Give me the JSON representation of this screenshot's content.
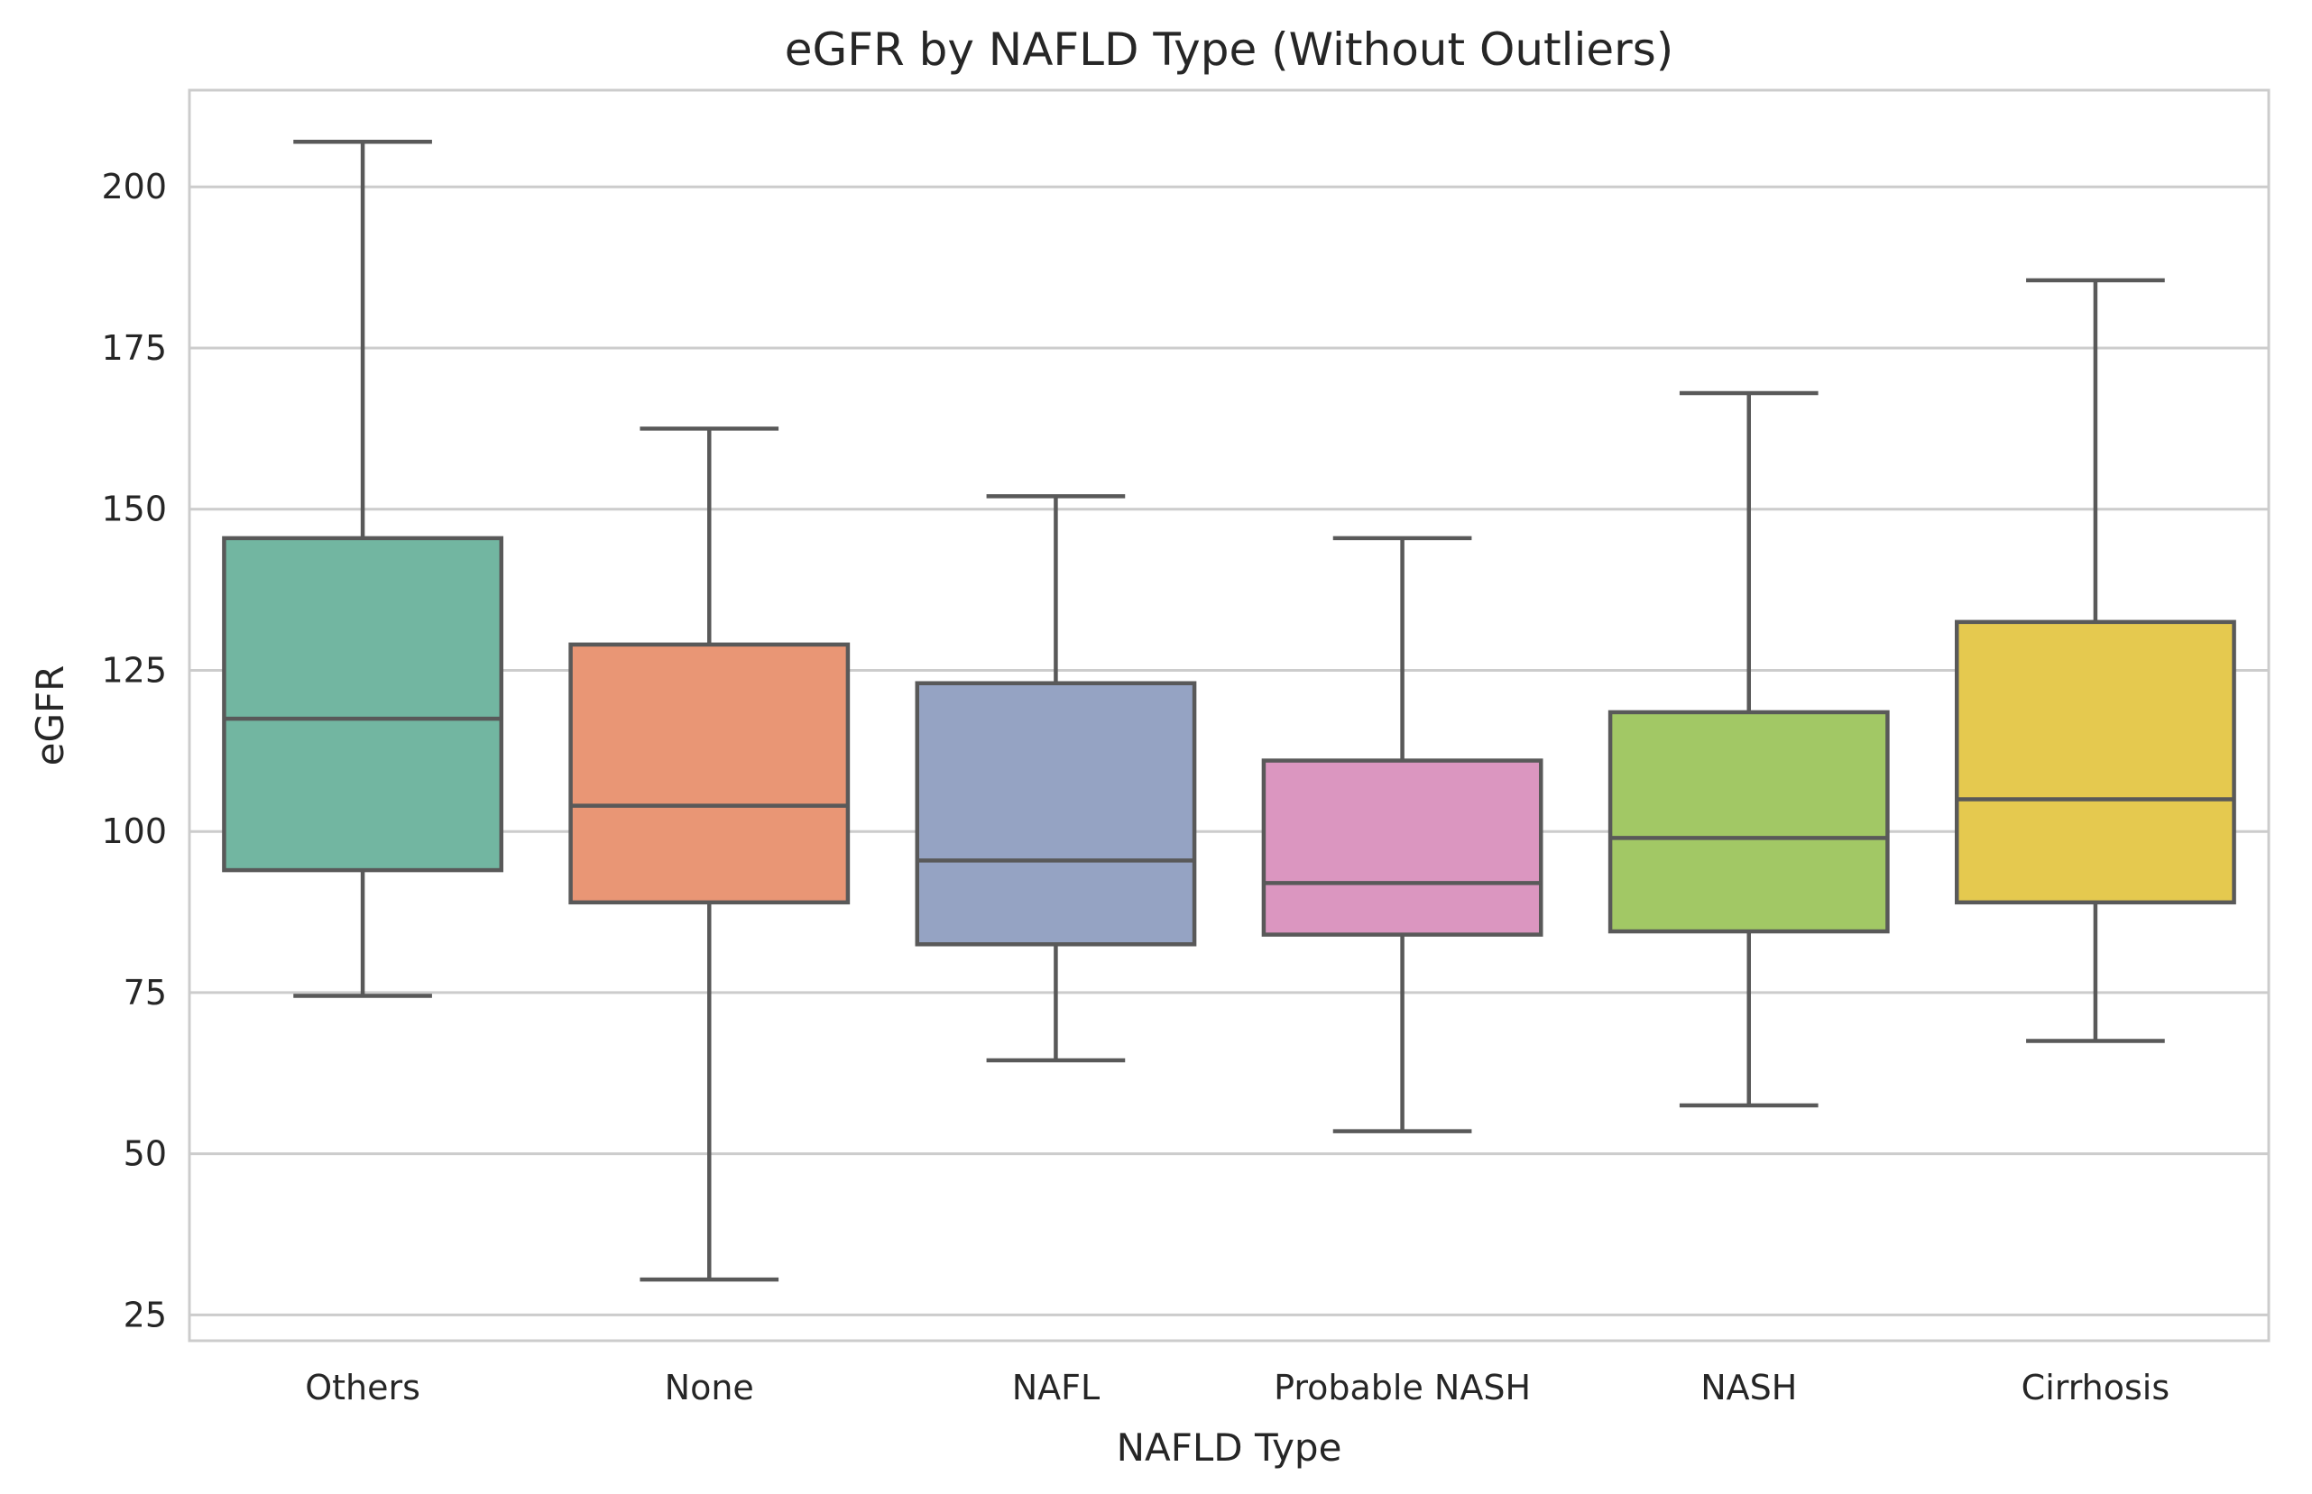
{
  "chart_data": {
    "type": "box",
    "title": "eGFR by NAFLD Type (Without Outliers)",
    "xlabel": "NAFLD Type",
    "ylabel": "eGFR",
    "ylim": [
      21,
      215
    ],
    "yticks": [
      25,
      50,
      75,
      100,
      125,
      150,
      175,
      200
    ],
    "grid": true,
    "categories": [
      "Others",
      "None",
      "NAFL",
      "Probable NASH",
      "NASH",
      "Cirrhosis"
    ],
    "boxes": [
      {
        "category": "Others",
        "whisker_low": 74.5,
        "q1": 94,
        "median": 117.5,
        "q3": 145.5,
        "whisker_high": 207,
        "color": "#72b6a1"
      },
      {
        "category": "None",
        "whisker_low": 30.5,
        "q1": 89,
        "median": 104,
        "q3": 129,
        "whisker_high": 162.5,
        "color": "#e99675"
      },
      {
        "category": "NAFL",
        "whisker_low": 64.5,
        "q1": 82.5,
        "median": 95.5,
        "q3": 123,
        "whisker_high": 152,
        "color": "#95a3c3"
      },
      {
        "category": "Probable NASH",
        "whisker_low": 53.5,
        "q1": 84,
        "median": 92,
        "q3": 111,
        "whisker_high": 145.5,
        "color": "#db96c0"
      },
      {
        "category": "NASH",
        "whisker_low": 57.5,
        "q1": 84.5,
        "median": 99,
        "q3": 118.5,
        "whisker_high": 168,
        "color": "#a2c865"
      },
      {
        "category": "Cirrhosis",
        "whisker_low": 67.5,
        "q1": 89,
        "median": 105,
        "q3": 132.5,
        "whisker_high": 185.5,
        "color": "#e5c94f"
      }
    ]
  }
}
